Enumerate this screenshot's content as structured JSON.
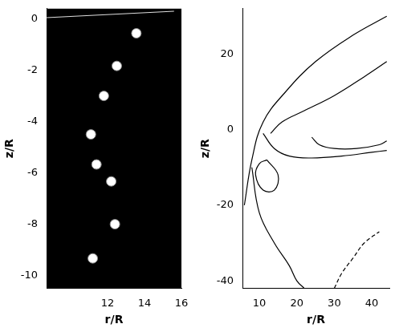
{
  "chart_data": [
    {
      "type": "scatter",
      "x_label": "r/R",
      "y_label": "z/R",
      "xlim": [
        8.7,
        16
      ],
      "ylim": [
        -10.5,
        0.4
      ],
      "xticks": [
        12,
        14,
        16
      ],
      "yticks": [
        -10,
        -8,
        -6,
        -4,
        -2,
        0
      ],
      "grid": false,
      "series": [
        {
          "type": "scatter",
          "color": "#ffffff",
          "marker": "circle",
          "x": [
            13.56,
            12.5,
            11.8,
            11.1,
            11.4,
            12.2,
            12.4,
            11.2
          ],
          "values": [
            -0.56,
            -1.83,
            -3.0,
            -4.5,
            -5.67,
            -6.33,
            -8.0,
            -9.33
          ]
        },
        {
          "type": "line",
          "color": "#dddddd",
          "line_style": "solid",
          "x": [
            8.7,
            15.6
          ],
          "values": [
            0.05,
            0.3
          ]
        }
      ]
    },
    {
      "type": "line",
      "x_label": "r/R",
      "y_label": "z/R",
      "xlim": [
        5.5,
        44.7
      ],
      "ylim": [
        -42,
        32
      ],
      "xticks": [
        10,
        20,
        30,
        40
      ],
      "yticks": [
        -40,
        -20,
        0,
        20
      ],
      "grid": false,
      "series": [
        {
          "type": "line",
          "color": "#000000",
          "line_style": "solid",
          "x": [
            44,
            35,
            25,
            17,
            11,
            8,
            6
          ],
          "values": [
            30,
            25,
            18,
            10,
            2,
            -8,
            -20
          ]
        },
        {
          "type": "line",
          "color": "#000000",
          "line_style": "solid",
          "x": [
            44,
            38,
            30,
            22,
            16,
            13
          ],
          "values": [
            18,
            14,
            9,
            5,
            2,
            -1
          ]
        },
        {
          "type": "line",
          "color": "#000000",
          "line_style": "solid",
          "x": [
            11,
            14,
            18,
            24,
            32,
            40,
            44
          ],
          "values": [
            -1,
            -5,
            -7,
            -7.5,
            -7,
            -6,
            -5.5
          ]
        },
        {
          "type": "line",
          "color": "#000000",
          "line_style": "solid",
          "x": [
            12,
            15,
            14,
            11,
            9,
            10,
            12
          ],
          "values": [
            -8,
            -12,
            -16,
            -16,
            -12,
            -9,
            -8
          ]
        },
        {
          "type": "line",
          "color": "#000000",
          "line_style": "solid",
          "x": [
            8,
            10,
            14,
            18,
            20,
            22
          ],
          "values": [
            -10,
            -22,
            -30,
            -36,
            -40,
            -42
          ]
        },
        {
          "type": "line",
          "color": "#000000",
          "line_style": "solid",
          "x": [
            24,
            26,
            30,
            36,
            42,
            44
          ],
          "values": [
            -2,
            -4,
            -5,
            -5,
            -4,
            -3
          ]
        },
        {
          "type": "line",
          "color": "#000000",
          "line_style": "dashed",
          "x": [
            30,
            32,
            35,
            38,
            42
          ],
          "values": [
            -42,
            -38,
            -34,
            -30,
            -27
          ]
        }
      ]
    }
  ]
}
